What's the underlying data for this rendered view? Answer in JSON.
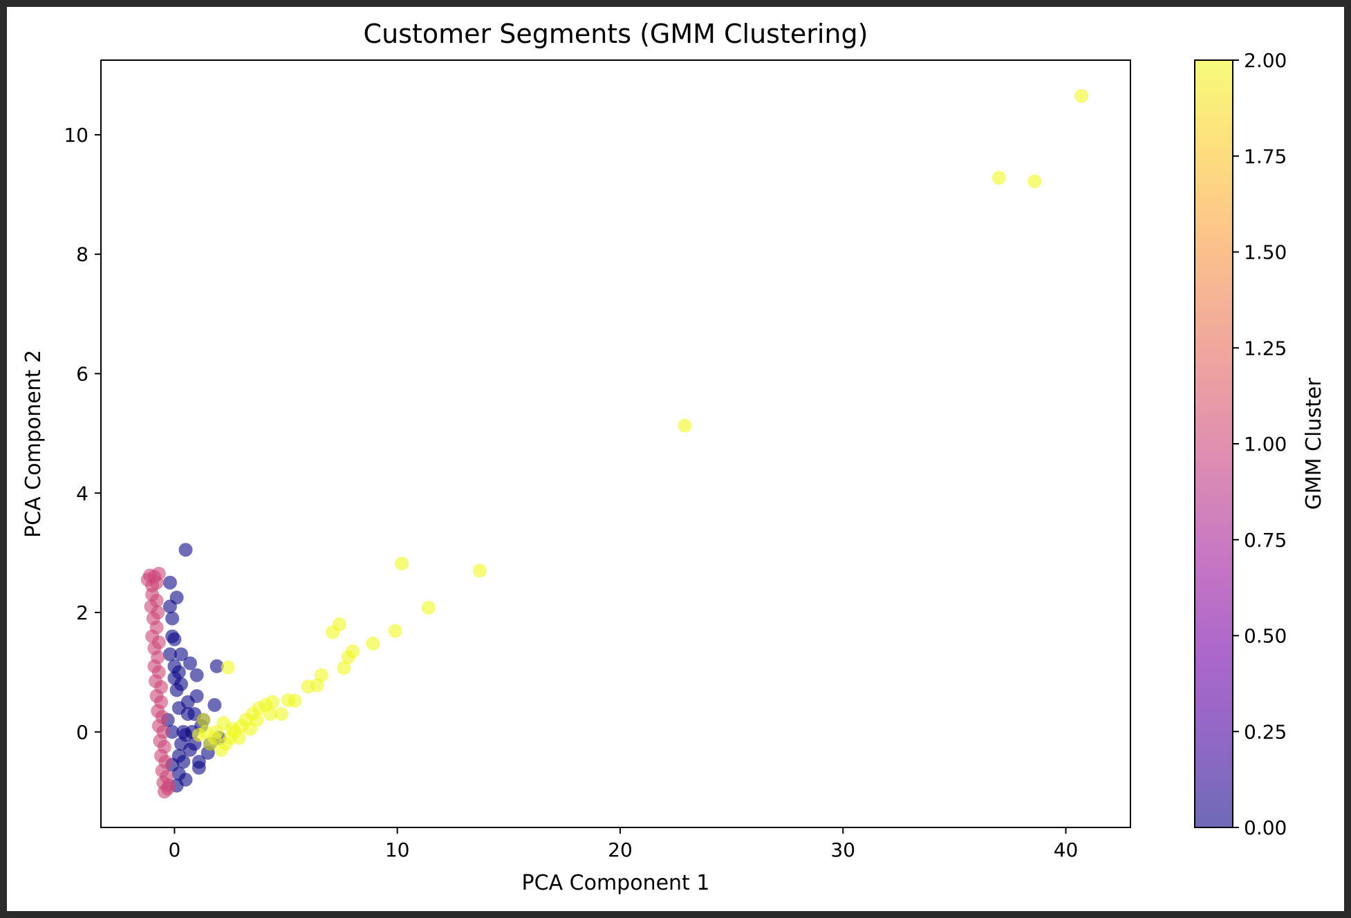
{
  "chart_data": {
    "type": "scatter",
    "title": "Customer Segments (GMM Clustering)",
    "xlabel": "PCA Component 1",
    "ylabel": "PCA Component 2",
    "xlim": [
      -3.3,
      42.9
    ],
    "ylim": [
      -1.6,
      11.25
    ],
    "xticks": [
      0,
      10,
      20,
      30,
      40
    ],
    "yticks": [
      0,
      2,
      4,
      6,
      8,
      10
    ],
    "grid": false,
    "colormap": "plasma",
    "marker_alpha": 0.6,
    "colorbar": {
      "label": "GMM Cluster",
      "range": [
        0,
        2
      ],
      "ticks": [
        "0.00",
        "0.25",
        "0.50",
        "0.75",
        "1.00",
        "1.25",
        "1.50",
        "1.75",
        "2.00"
      ],
      "stops": [
        "#0d0887",
        "#46039f",
        "#7201a8",
        "#9c179e",
        "#bd3786",
        "#d8576b",
        "#ed7953",
        "#fb9f3a",
        "#fdca26",
        "#f0f921"
      ]
    },
    "cluster_colors": {
      "0": "#0d0887",
      "1": "#cc4778",
      "2": "#f0f921"
    },
    "series": [
      {
        "cluster": 0,
        "points": [
          [
            0.5,
            3.05
          ],
          [
            -0.2,
            2.5
          ],
          [
            0.1,
            2.25
          ],
          [
            -0.2,
            2.1
          ],
          [
            -0.1,
            1.9
          ],
          [
            0.0,
            1.55
          ],
          [
            1.9,
            1.1
          ],
          [
            0.7,
            1.15
          ],
          [
            1.0,
            0.95
          ],
          [
            0.3,
            0.8
          ],
          [
            1.8,
            0.45
          ],
          [
            1.0,
            0.6
          ],
          [
            0.6,
            0.3
          ],
          [
            1.2,
            0.1
          ],
          [
            2.0,
            -0.1
          ],
          [
            0.9,
            -0.2
          ],
          [
            1.5,
            -0.35
          ],
          [
            0.4,
            -0.5
          ],
          [
            -0.1,
            -0.55
          ],
          [
            0.5,
            -0.8
          ],
          [
            1.1,
            -0.6
          ],
          [
            0.0,
            1.1
          ],
          [
            0.2,
            0.4
          ],
          [
            -0.2,
            1.3
          ],
          [
            0.3,
            -0.2
          ],
          [
            0.8,
            0.0
          ],
          [
            0.1,
            0.7
          ],
          [
            -0.3,
            0.2
          ],
          [
            0.6,
            0.5
          ],
          [
            1.3,
            0.2
          ],
          [
            0.1,
            -0.9
          ],
          [
            0.2,
            -0.4
          ],
          [
            0.4,
            0.0
          ],
          [
            0.2,
            1.0
          ],
          [
            0.7,
            -0.3
          ],
          [
            1.6,
            -0.2
          ],
          [
            0.9,
            0.3
          ],
          [
            0.0,
            0.9
          ],
          [
            0.3,
            1.3
          ],
          [
            -0.1,
            0.0
          ],
          [
            0.5,
            -0.05
          ],
          [
            1.1,
            -0.5
          ],
          [
            0.2,
            -0.7
          ],
          [
            -0.1,
            1.6
          ]
        ]
      },
      {
        "cluster": 1,
        "points": [
          [
            -1.1,
            2.62
          ],
          [
            -0.9,
            2.6
          ],
          [
            -0.7,
            2.65
          ],
          [
            -1.2,
            2.55
          ],
          [
            -0.8,
            2.5
          ],
          [
            -1.0,
            2.45
          ],
          [
            -1.0,
            2.3
          ],
          [
            -0.8,
            2.2
          ],
          [
            -1.05,
            2.1
          ],
          [
            -0.75,
            2.0
          ],
          [
            -0.95,
            1.9
          ],
          [
            -0.8,
            1.75
          ],
          [
            -1.0,
            1.6
          ],
          [
            -0.7,
            1.5
          ],
          [
            -0.9,
            1.4
          ],
          [
            -0.75,
            1.25
          ],
          [
            -0.9,
            1.1
          ],
          [
            -0.7,
            1.0
          ],
          [
            -0.85,
            0.85
          ],
          [
            -0.6,
            0.75
          ],
          [
            -0.8,
            0.6
          ],
          [
            -0.6,
            0.5
          ],
          [
            -0.75,
            0.35
          ],
          [
            -0.55,
            0.25
          ],
          [
            -0.7,
            0.1
          ],
          [
            -0.5,
            0.0
          ],
          [
            -0.65,
            -0.15
          ],
          [
            -0.45,
            -0.25
          ],
          [
            -0.6,
            -0.4
          ],
          [
            -0.4,
            -0.5
          ],
          [
            -0.55,
            -0.65
          ],
          [
            -0.35,
            -0.75
          ],
          [
            -0.5,
            -0.85
          ],
          [
            -0.3,
            -0.95
          ],
          [
            -0.45,
            -1.0
          ],
          [
            -0.25,
            -0.9
          ]
        ]
      },
      {
        "cluster": 2,
        "points": [
          [
            40.7,
            10.65
          ],
          [
            37.0,
            9.28
          ],
          [
            38.6,
            9.22
          ],
          [
            22.9,
            5.13
          ],
          [
            10.2,
            2.82
          ],
          [
            13.7,
            2.7
          ],
          [
            11.4,
            2.08
          ],
          [
            7.4,
            1.8
          ],
          [
            7.1,
            1.67
          ],
          [
            9.9,
            1.69
          ],
          [
            8.9,
            1.48
          ],
          [
            8.0,
            1.35
          ],
          [
            7.8,
            1.25
          ],
          [
            7.6,
            1.07
          ],
          [
            6.6,
            0.95
          ],
          [
            6.4,
            0.78
          ],
          [
            6.0,
            0.76
          ],
          [
            5.4,
            0.52
          ],
          [
            5.1,
            0.53
          ],
          [
            4.4,
            0.5
          ],
          [
            4.1,
            0.45
          ],
          [
            3.8,
            0.4
          ],
          [
            4.8,
            0.3
          ],
          [
            3.5,
            0.3
          ],
          [
            3.2,
            0.2
          ],
          [
            3.0,
            0.1
          ],
          [
            2.7,
            0.0
          ],
          [
            2.5,
            -0.1
          ],
          [
            2.3,
            -0.2
          ],
          [
            2.1,
            -0.3
          ],
          [
            2.4,
            1.08
          ],
          [
            1.3,
            0.2
          ],
          [
            1.9,
            0.0
          ],
          [
            1.1,
            -0.05
          ],
          [
            2.9,
            -0.1
          ],
          [
            3.4,
            0.05
          ],
          [
            2.2,
            0.15
          ],
          [
            1.6,
            -0.2
          ],
          [
            1.8,
            -0.1
          ],
          [
            2.6,
            0.05
          ],
          [
            3.7,
            0.2
          ],
          [
            4.3,
            0.3
          ],
          [
            1.4,
            0.0
          ]
        ]
      }
    ]
  }
}
